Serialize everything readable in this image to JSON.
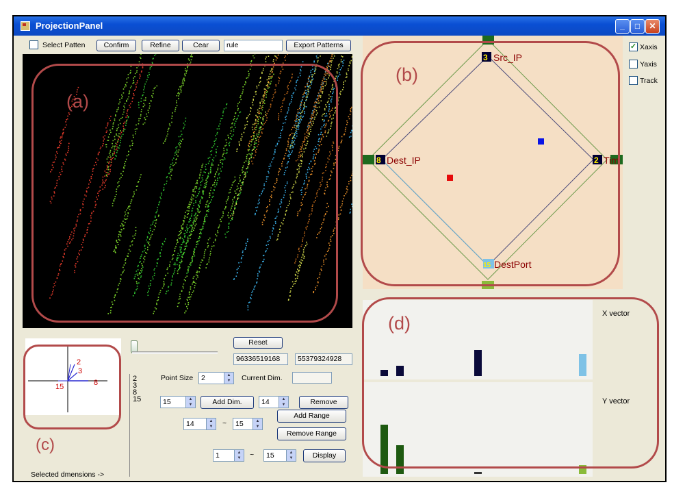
{
  "window": {
    "title": "ProjectionPanel",
    "min": "_",
    "max": "□",
    "close": "✕"
  },
  "toolbar": {
    "select_pattern_label": "Select Patten",
    "confirm": "Confirm",
    "refine": "Refine",
    "clear": "Cear",
    "rule_value": "rule",
    "export": "Export Patterns"
  },
  "callouts": {
    "a": "(a)",
    "b": "(b)",
    "c": "(c)",
    "d": "(d)"
  },
  "projection": {
    "axes": [
      {
        "num": "3",
        "name": "Src_IP"
      },
      {
        "num": "8",
        "name": "Dest_IP"
      },
      {
        "num": "2",
        "name": "Tim"
      },
      {
        "num": "15",
        "name": "DestPort"
      }
    ],
    "colors": {
      "accent_top": "#1e6a1e",
      "accent_bottom": "#8abb3a",
      "node_dark": "#000033",
      "node_num": "#ffee00",
      "label": "#8b0000",
      "pt_blue": "#0a14e6",
      "pt_red": "#e60a0a"
    }
  },
  "axis_checks": [
    {
      "label": "Xaxis",
      "checked": true
    },
    {
      "label": "Yaxis",
      "checked": false
    },
    {
      "label": "Track",
      "checked": false
    }
  ],
  "vectors": {
    "x_label": "X vector",
    "y_label": "Y vector"
  },
  "controls": {
    "reset": "Reset",
    "num1": "96336519168",
    "num2": "55379324928",
    "point_size_label": "Point Size",
    "point_size": "2",
    "current_dim_label": "Current Dim.",
    "dim_value": "15",
    "add_dim": "Add Dim.",
    "remove_value": "14",
    "remove": "Remove",
    "range_from": "14",
    "tilde": "~",
    "range_to": "15",
    "add_range": "Add Range",
    "remove_range": "Remove Range",
    "display_from": "1",
    "display_to": "15",
    "display": "Display",
    "selected_dims_label": "Selected dmensions ->"
  },
  "selected_dims": [
    "2",
    "3",
    "8",
    "15"
  ],
  "mini_axes": {
    "labels": [
      "2",
      "3",
      "15",
      "8"
    ]
  }
}
